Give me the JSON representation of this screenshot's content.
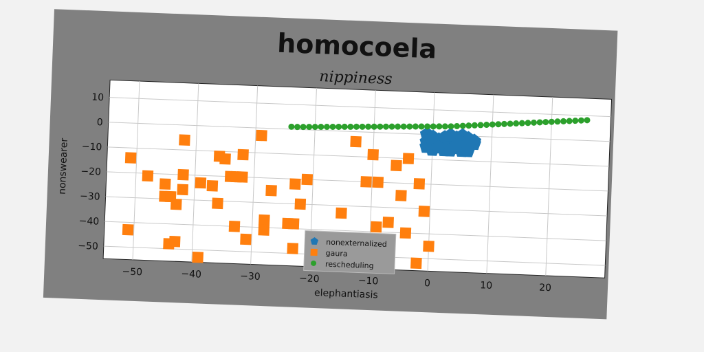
{
  "chart_data": {
    "type": "scatter",
    "suptitle": "homocoela",
    "title": "nippiness",
    "xlabel": "elephantiasis",
    "ylabel": "nonswearer",
    "xlim": [
      -55,
      30
    ],
    "ylim": [
      -55,
      17
    ],
    "xticks": [
      -50,
      -40,
      -30,
      -20,
      -10,
      0,
      10,
      20
    ],
    "yticks": [
      10,
      0,
      -10,
      -20,
      -30,
      -40,
      -50
    ],
    "xtick_labels": [
      "−50",
      "−40",
      "−30",
      "−20",
      "−10",
      "0",
      "10",
      "20"
    ],
    "ytick_labels": [
      "10",
      "0",
      "−10",
      "−20",
      "−30",
      "−40",
      "−50"
    ],
    "grid": true,
    "legend_position": "bottom-center",
    "series": [
      {
        "name": "nonexternalized",
        "marker": "pentagon",
        "color": "#1f77b4",
        "points": [
          [
            -1,
            0
          ],
          [
            0,
            -1
          ],
          [
            1,
            -2
          ],
          [
            -1,
            -3
          ],
          [
            1,
            -4
          ],
          [
            -1,
            -5
          ],
          [
            0,
            -6
          ],
          [
            2,
            -3
          ],
          [
            3,
            -2
          ],
          [
            3,
            -4
          ],
          [
            2,
            -6
          ],
          [
            4,
            -1
          ],
          [
            5,
            0
          ],
          [
            6,
            -1
          ],
          [
            7,
            -2
          ],
          [
            5,
            -3
          ],
          [
            6,
            -4
          ],
          [
            5,
            -6
          ],
          [
            4,
            -5
          ],
          [
            3,
            -6
          ],
          [
            4,
            -3
          ],
          [
            6,
            -2
          ],
          [
            7,
            -3
          ],
          [
            0,
            -3
          ],
          [
            2,
            -1
          ],
          [
            3,
            0
          ],
          [
            5,
            -5
          ],
          [
            6,
            -6
          ],
          [
            1,
            -5
          ],
          [
            4,
            -4
          ]
        ]
      },
      {
        "name": "gaura",
        "marker": "square",
        "color": "#ff7f0e",
        "points": [
          [
            -51,
            -14
          ],
          [
            -51,
            -43
          ],
          [
            -48,
            -21
          ],
          [
            -45,
            -24
          ],
          [
            -45,
            -29
          ],
          [
            -44,
            -29
          ],
          [
            -44,
            -48
          ],
          [
            -43,
            -47
          ],
          [
            -43,
            -32
          ],
          [
            -42,
            -20
          ],
          [
            -42,
            -26
          ],
          [
            -42,
            -6
          ],
          [
            -39,
            -23
          ],
          [
            -39,
            -53
          ],
          [
            -37,
            -24
          ],
          [
            -36,
            -31
          ],
          [
            -36,
            -12
          ],
          [
            -35,
            -13
          ],
          [
            -34,
            -20
          ],
          [
            -33,
            -40
          ],
          [
            -33,
            -20
          ],
          [
            -32,
            -20
          ],
          [
            -32,
            -11
          ],
          [
            -31,
            -45
          ],
          [
            -29,
            -3
          ],
          [
            -28,
            -37
          ],
          [
            -28,
            -41
          ],
          [
            -27,
            -25
          ],
          [
            -24,
            -38
          ],
          [
            -23,
            -48
          ],
          [
            -23,
            -38
          ],
          [
            -23,
            -22
          ],
          [
            -22,
            -30
          ],
          [
            -21,
            -20
          ],
          [
            -15,
            -33
          ],
          [
            -13,
            -4
          ],
          [
            -12,
            -44
          ],
          [
            -11,
            -20
          ],
          [
            -10,
            -9
          ],
          [
            -9,
            -20
          ],
          [
            -9,
            -38
          ],
          [
            -7,
            -36
          ],
          [
            -6,
            -13
          ],
          [
            -5,
            -25
          ],
          [
            -4,
            -40
          ],
          [
            -4,
            -10
          ],
          [
            -2,
            -20
          ],
          [
            -2,
            -52
          ],
          [
            -1,
            -31
          ],
          [
            0,
            -45
          ]
        ]
      },
      {
        "name": "rescheduling",
        "marker": "circle",
        "color": "#2ca02c",
        "points": [
          [
            -24,
            1
          ],
          [
            -23,
            1
          ],
          [
            -22,
            1.1
          ],
          [
            -21,
            1.2
          ],
          [
            -20,
            1.3
          ],
          [
            -19,
            1.4
          ],
          [
            -18,
            1.5
          ],
          [
            -17,
            1.6
          ],
          [
            -16,
            1.7
          ],
          [
            -15,
            1.8
          ],
          [
            -14,
            1.9
          ],
          [
            -13,
            2
          ],
          [
            -12,
            2.1
          ],
          [
            -11,
            2.2
          ],
          [
            -10,
            2.3
          ],
          [
            -9,
            2.4
          ],
          [
            -8,
            2.5
          ],
          [
            -7,
            2.6
          ],
          [
            -6,
            2.7
          ],
          [
            -5,
            2.8
          ],
          [
            -4,
            2.9
          ],
          [
            -3,
            3
          ],
          [
            -2,
            3.1
          ],
          [
            -1,
            3.2
          ],
          [
            0,
            3.3
          ],
          [
            1,
            3.4
          ],
          [
            2,
            3.5
          ],
          [
            3,
            3.6
          ],
          [
            4,
            3.8
          ],
          [
            5,
            4
          ],
          [
            6,
            4.2
          ],
          [
            7,
            4.4
          ],
          [
            8,
            4.6
          ],
          [
            9,
            4.8
          ],
          [
            10,
            5
          ],
          [
            11,
            5.2
          ],
          [
            12,
            5.4
          ],
          [
            13,
            5.6
          ],
          [
            14,
            5.8
          ],
          [
            15,
            6
          ],
          [
            16,
            6.2
          ],
          [
            17,
            6.4
          ],
          [
            18,
            6.6
          ],
          [
            19,
            6.8
          ],
          [
            20,
            7
          ],
          [
            21,
            7.2
          ],
          [
            22,
            7.4
          ],
          [
            23,
            7.6
          ],
          [
            24,
            7.8
          ],
          [
            25,
            8
          ],
          [
            26,
            8.2
          ]
        ]
      }
    ]
  }
}
